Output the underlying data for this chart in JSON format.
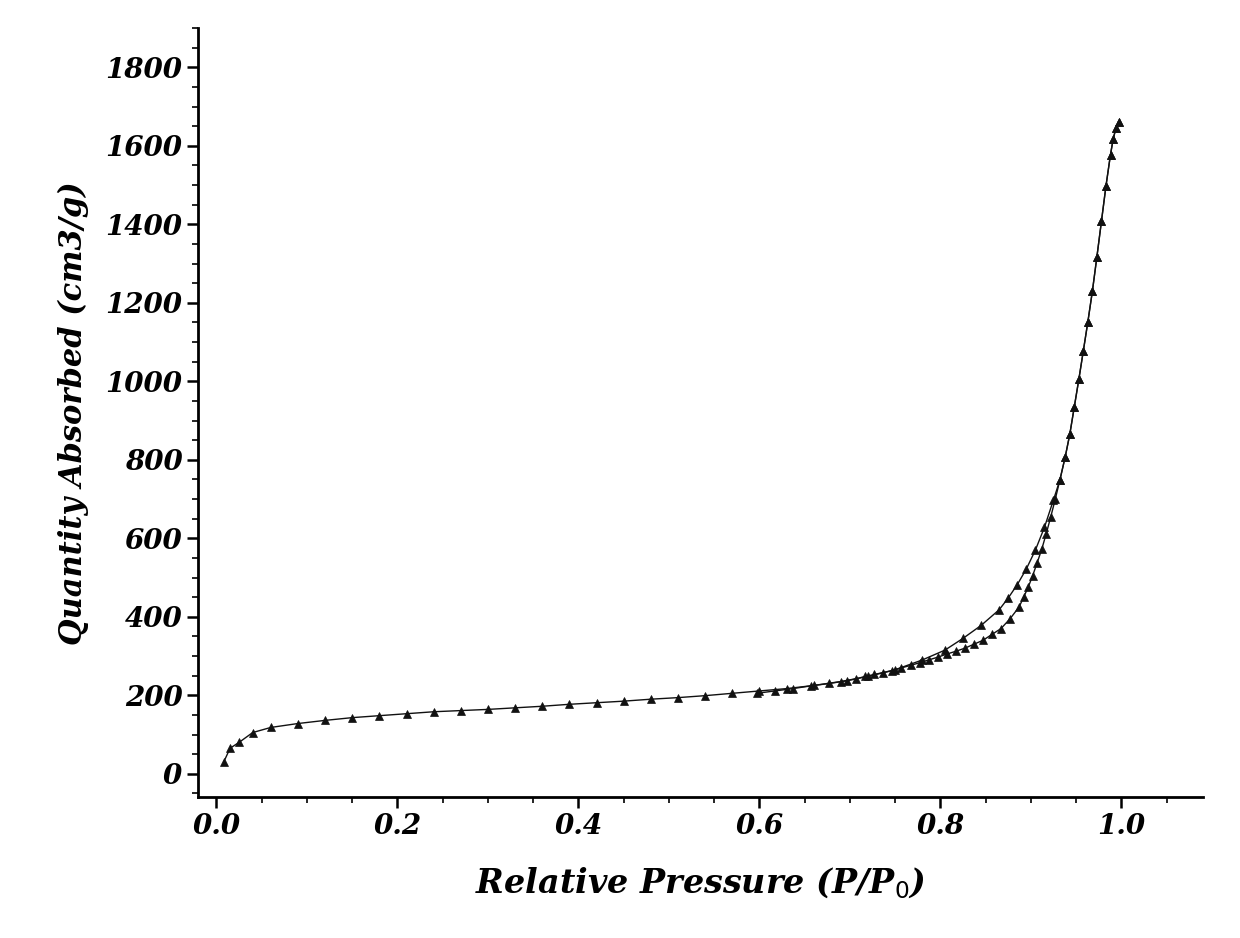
{
  "xlabel": "Relative Pressure (P/P$_0$)",
  "ylabel": "Quantity Absorbed (cm3/g)",
  "xlim": [
    -0.02,
    1.09
  ],
  "ylim": [
    -60,
    1900
  ],
  "xticks": [
    0.0,
    0.2,
    0.4,
    0.6,
    0.8,
    1.0
  ],
  "yticks": [
    0,
    200,
    400,
    600,
    800,
    1000,
    1200,
    1400,
    1600,
    1800
  ],
  "marker": "^",
  "marker_color": "#111111",
  "line_color": "#111111",
  "marker_size": 6,
  "line_width": 1.0,
  "background_color": "#ffffff",
  "xlabel_fontsize": 24,
  "ylabel_fontsize": 22,
  "tick_fontsize": 20,
  "adsorption_x": [
    0.008,
    0.015,
    0.025,
    0.04,
    0.06,
    0.09,
    0.12,
    0.15,
    0.18,
    0.21,
    0.24,
    0.27,
    0.3,
    0.33,
    0.36,
    0.39,
    0.42,
    0.45,
    0.48,
    0.51,
    0.54,
    0.57,
    0.6,
    0.63,
    0.66,
    0.69,
    0.72,
    0.75,
    0.78,
    0.805,
    0.825,
    0.845,
    0.865,
    0.875,
    0.885,
    0.895,
    0.905,
    0.915,
    0.925,
    0.932,
    0.938,
    0.943,
    0.948,
    0.953,
    0.958,
    0.963,
    0.968,
    0.973,
    0.978,
    0.983,
    0.988,
    0.991,
    0.994,
    0.997
  ],
  "adsorption_y": [
    30,
    65,
    80,
    105,
    118,
    128,
    136,
    143,
    148,
    153,
    158,
    161,
    164,
    168,
    172,
    177,
    181,
    185,
    190,
    194,
    199,
    205,
    211,
    217,
    225,
    235,
    248,
    265,
    290,
    315,
    345,
    378,
    418,
    448,
    482,
    522,
    570,
    628,
    698,
    748,
    808,
    865,
    935,
    1005,
    1078,
    1152,
    1230,
    1318,
    1408,
    1498,
    1578,
    1618,
    1645,
    1662
  ],
  "desorption_x": [
    0.997,
    0.994,
    0.991,
    0.988,
    0.983,
    0.978,
    0.973,
    0.968,
    0.963,
    0.958,
    0.953,
    0.948,
    0.943,
    0.938,
    0.932,
    0.927,
    0.922,
    0.917,
    0.912,
    0.907,
    0.902,
    0.897,
    0.892,
    0.887,
    0.877,
    0.867,
    0.857,
    0.847,
    0.837,
    0.827,
    0.817,
    0.807,
    0.797,
    0.787,
    0.777,
    0.767,
    0.757,
    0.747,
    0.737,
    0.727,
    0.717,
    0.707,
    0.697,
    0.677,
    0.657,
    0.637,
    0.617,
    0.597
  ],
  "desorption_y": [
    1662,
    1645,
    1618,
    1578,
    1498,
    1408,
    1318,
    1230,
    1152,
    1078,
    1005,
    935,
    865,
    808,
    748,
    700,
    655,
    612,
    572,
    538,
    505,
    475,
    450,
    425,
    395,
    370,
    355,
    340,
    330,
    320,
    312,
    305,
    297,
    290,
    283,
    276,
    270,
    263,
    258,
    253,
    248,
    242,
    237,
    230,
    224,
    217,
    211,
    205
  ]
}
